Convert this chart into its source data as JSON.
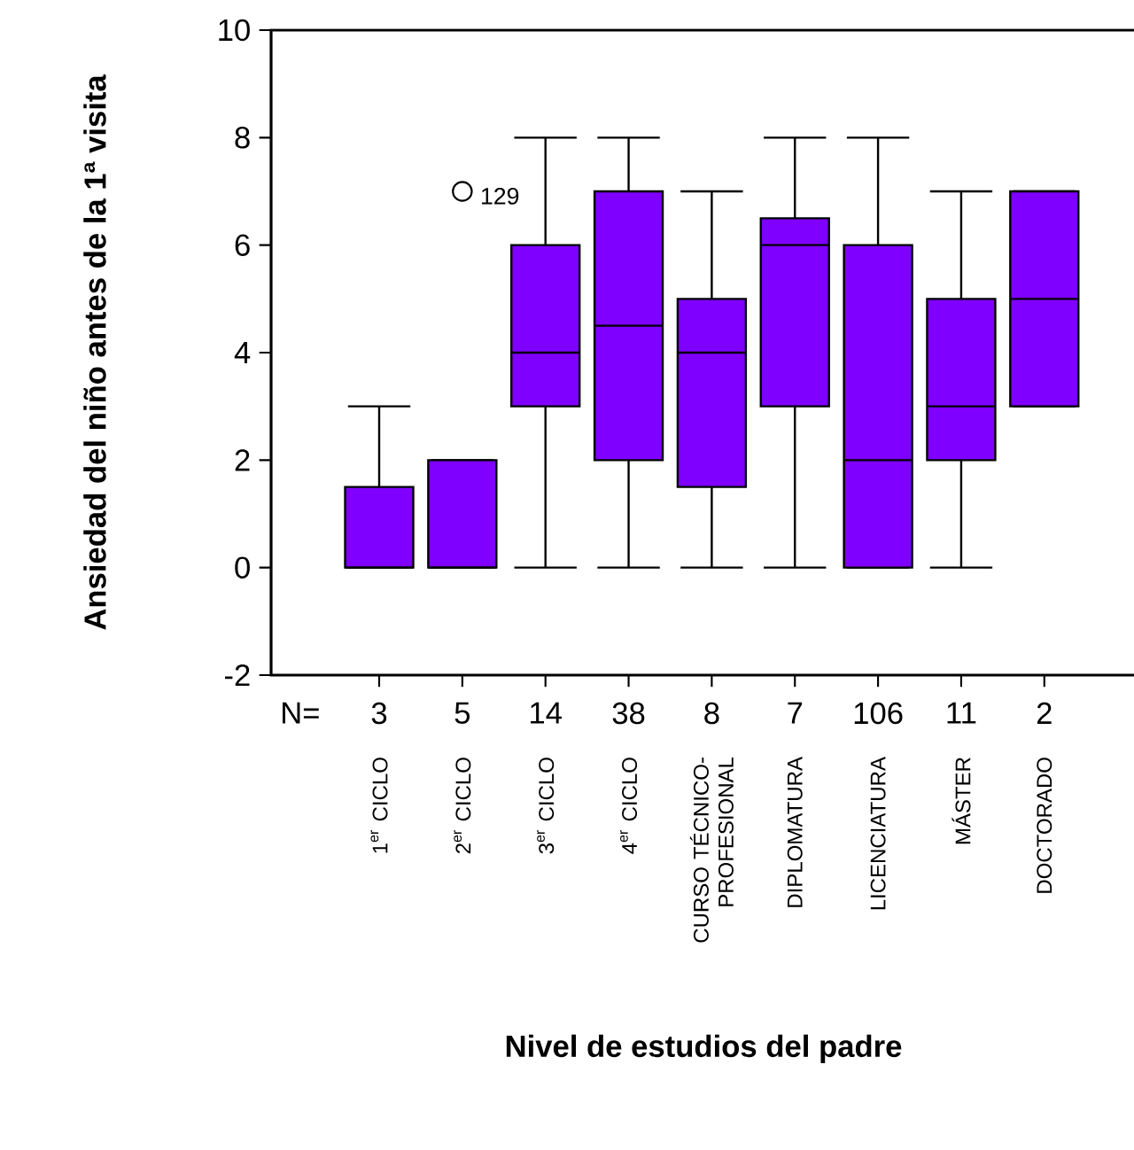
{
  "chart_data": {
    "type": "box",
    "xlabel": "Nivel de estudios del padre",
    "ylabel": "Ansiedad del niño antes de la 1ª visita",
    "categories": [
      "1$^{er}$ CICLO",
      "2$^{er}$ CICLO",
      "3$^{er}$ CICLO",
      "4$^{er}$ CICLO",
      "CURSO TÉCNICO-PROFESIONAL",
      "DIPLOMATURA",
      "LICENCIATURA",
      "MÁSTER",
      "DOCTORADO"
    ],
    "color": "#7f00ff",
    "boxes": [
      {
        "low": 0,
        "q1": 0,
        "median": 0,
        "q3": 1.5,
        "high": 3
      },
      {
        "low": 0,
        "q1": 0,
        "median": 0,
        "q3": 2,
        "high": 2,
        "outliers": [
          7
        ]
      },
      {
        "low": 0,
        "q1": 3,
        "median": 4,
        "q3": 6,
        "high": 8
      },
      {
        "low": 0,
        "q1": 2,
        "median": 4.5,
        "q3": 7,
        "high": 8
      },
      {
        "low": 0,
        "q1": 1.5,
        "median": 4,
        "q3": 5,
        "high": 7
      },
      {
        "low": 0,
        "q1": 3,
        "median": 6,
        "q3": 6.5,
        "high": 8
      },
      {
        "low": 0,
        "q1": 0,
        "median": 2,
        "q3": 6,
        "high": 8
      },
      {
        "low": 0,
        "q1": 2,
        "median": 3,
        "q3": 5,
        "high": 7
      },
      {
        "low": 3,
        "q1": 3,
        "median": 5,
        "q3": 7,
        "high": 7
      }
    ],
    "ylim": [
      -2,
      10
    ],
    "yticks": [
      -2,
      0,
      2,
      4,
      6,
      8,
      10
    ],
    "annotations": [
      "N=",
      "3",
      "5",
      "14",
      "38",
      "8",
      "7",
      "106",
      "11",
      "2",
      "129"
    ]
  }
}
